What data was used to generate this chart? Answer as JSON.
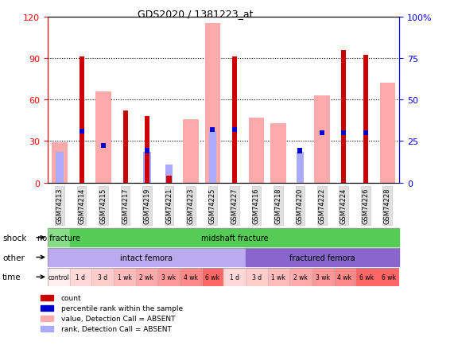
{
  "title": "GDS2020 / 1381223_at",
  "samples": [
    "GSM74213",
    "GSM74214",
    "GSM74215",
    "GSM74217",
    "GSM74219",
    "GSM74221",
    "GSM74223",
    "GSM74225",
    "GSM74227",
    "GSM74216",
    "GSM74218",
    "GSM74220",
    "GSM74222",
    "GSM74224",
    "GSM74226",
    "GSM74228"
  ],
  "red_bars": [
    0,
    91,
    0,
    52,
    48,
    5,
    0,
    0,
    91,
    0,
    0,
    0,
    0,
    96,
    92,
    0
  ],
  "pink_bars": [
    29,
    0,
    66,
    0,
    0,
    0,
    46,
    115,
    0,
    47,
    43,
    0,
    63,
    0,
    0,
    72
  ],
  "blue_bars": [
    0,
    37,
    27,
    0,
    23,
    0,
    0,
    38,
    38,
    0,
    0,
    23,
    36,
    36,
    36,
    0
  ],
  "light_blue_bars": [
    22,
    0,
    0,
    0,
    22,
    13,
    0,
    37,
    0,
    0,
    0,
    22,
    0,
    0,
    0,
    0
  ],
  "ylim_left": [
    0,
    120
  ],
  "ylim_right": [
    0,
    100
  ],
  "yticks_left": [
    0,
    30,
    60,
    90,
    120
  ],
  "yticks_right": [
    0,
    25,
    50,
    75,
    100
  ],
  "ytick_labels_right": [
    "0",
    "25",
    "50",
    "75",
    "100%"
  ],
  "colors": {
    "red": "#cc0000",
    "pink": "#ffaaaa",
    "blue": "#0000cc",
    "light_blue": "#aaaaff",
    "shock_nofrac": "#88dd88",
    "shock_mid": "#55cc55",
    "other_intact": "#bbaaee",
    "other_frac": "#8866cc",
    "grid": "#000000"
  },
  "shock_groups": [
    {
      "label": "no fracture",
      "start": 0,
      "end": 1
    },
    {
      "label": "midshaft fracture",
      "start": 1,
      "end": 16
    }
  ],
  "other_groups": [
    {
      "label": "intact femora",
      "start": 0,
      "end": 9
    },
    {
      "label": "fractured femora",
      "start": 9,
      "end": 16
    }
  ],
  "time_labels": [
    "control",
    "1 d",
    "3 d",
    "1 wk",
    "2 wk",
    "3 wk",
    "4 wk",
    "6 wk",
    "1 d",
    "3 d",
    "1 wk",
    "2 wk",
    "3 wk",
    "4 wk",
    "6 wk"
  ],
  "time_colors": [
    "#ffeeee",
    "#ffd8d8",
    "#ffcccc",
    "#ffbbbb",
    "#ffaaaa",
    "#ff9999",
    "#ff8888",
    "#ff6666",
    "#ffd8d8",
    "#ffcccc",
    "#ffbbbb",
    "#ffaaaa",
    "#ff9999",
    "#ff8888",
    "#ff6666"
  ],
  "legend_items": [
    {
      "color": "#cc0000",
      "label": "count"
    },
    {
      "color": "#0000cc",
      "label": "percentile rank within the sample"
    },
    {
      "color": "#ffaaaa",
      "label": "value, Detection Call = ABSENT"
    },
    {
      "color": "#aaaaff",
      "label": "rank, Detection Call = ABSENT"
    }
  ]
}
